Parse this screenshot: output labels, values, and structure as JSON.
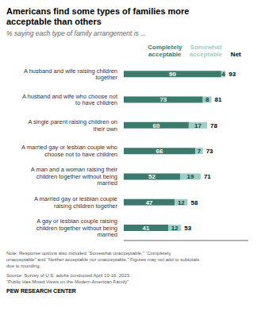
{
  "chart_data": {
    "type": "bar",
    "orientation": "horizontal",
    "stacked": true,
    "data_labels": true,
    "grid": false,
    "legend": "top",
    "tick_labels": "y",
    "title": "Americans find some types of families more\nacceptable than others",
    "subtitle": "% saying each type of family arrangement is ...",
    "categories": [
      "A husband and wife raising children\ntogether",
      "A husband and wife who choose not\nto have children",
      "A single parent raising children on\ntheir own",
      "A married gay or lesbian couple who\nchoose not to have children",
      "A man and a woman raising their\nchildren together without being\nmarried",
      "A married gay or lesbian couple\nraising children together",
      "A gay or lesbian couple raising\nchildren together without being\nmarried"
    ],
    "series": [
      {
        "name": "Completely\nacceptable",
        "color": "#3d7a6e",
        "values": [
          90,
          73,
          60,
          66,
          52,
          47,
          41
        ]
      },
      {
        "name": "Somewhat\nacceptable",
        "color": "#9fcec6",
        "values": [
          4,
          8,
          17,
          7,
          19,
          12,
          12
        ]
      }
    ],
    "net": {
      "name": "Net",
      "values": [
        93,
        81,
        78,
        73,
        71,
        58,
        53
      ]
    },
    "xlim": [
      0,
      115
    ],
    "note": "Note: Response options also included “Somewhat unacceptable,” “Completely\nunacceptable” and “Neither acceptable nor unacceptable.” Figures may not add to subtotals\ndue to rounding.",
    "source": "Source: Survey of U.S. adults conducted April 10-16, 2023.\n“Public Has Mixed Views on the Modern American Family”",
    "footer": "PEW RESEARCH CENTER"
  }
}
